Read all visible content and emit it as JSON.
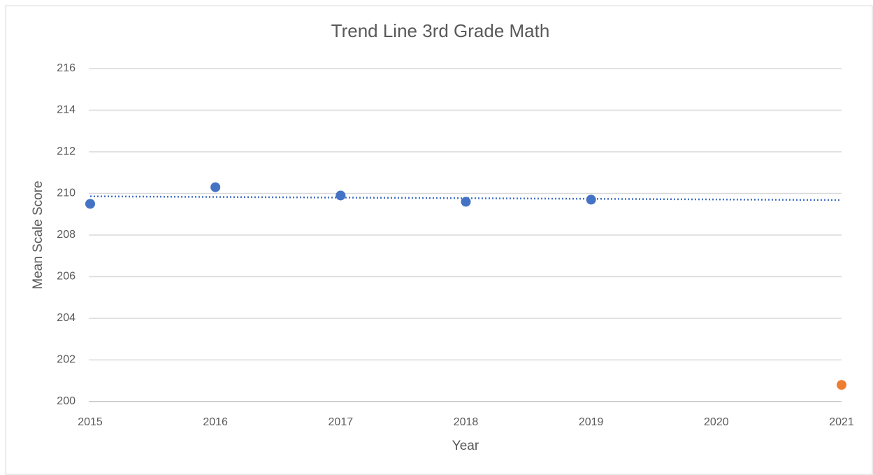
{
  "chart_data": {
    "type": "scatter",
    "title": "Trend Line 3rd Grade Math",
    "xlabel": "Year",
    "ylabel": "Mean Scale Score",
    "series": [
      {
        "color": "#4472c4",
        "x": [
          2015,
          2016,
          2017,
          2018,
          2019
        ],
        "values": [
          209.5,
          210.3,
          209.9,
          209.6,
          209.7
        ]
      },
      {
        "color": "#ed7d31",
        "x": [
          2021
        ],
        "values": [
          200.8
        ]
      }
    ],
    "trendline": {
      "series": 0,
      "color": "#4472c4",
      "style": "dotted"
    },
    "xlim": [
      2015,
      2021
    ],
    "xticks": [
      2015,
      2016,
      2017,
      2018,
      2019,
      2020,
      2021
    ],
    "ylim": [
      200,
      216
    ],
    "yticks": [
      200,
      202,
      204,
      206,
      208,
      210,
      212,
      214,
      216
    ],
    "grid": true
  }
}
